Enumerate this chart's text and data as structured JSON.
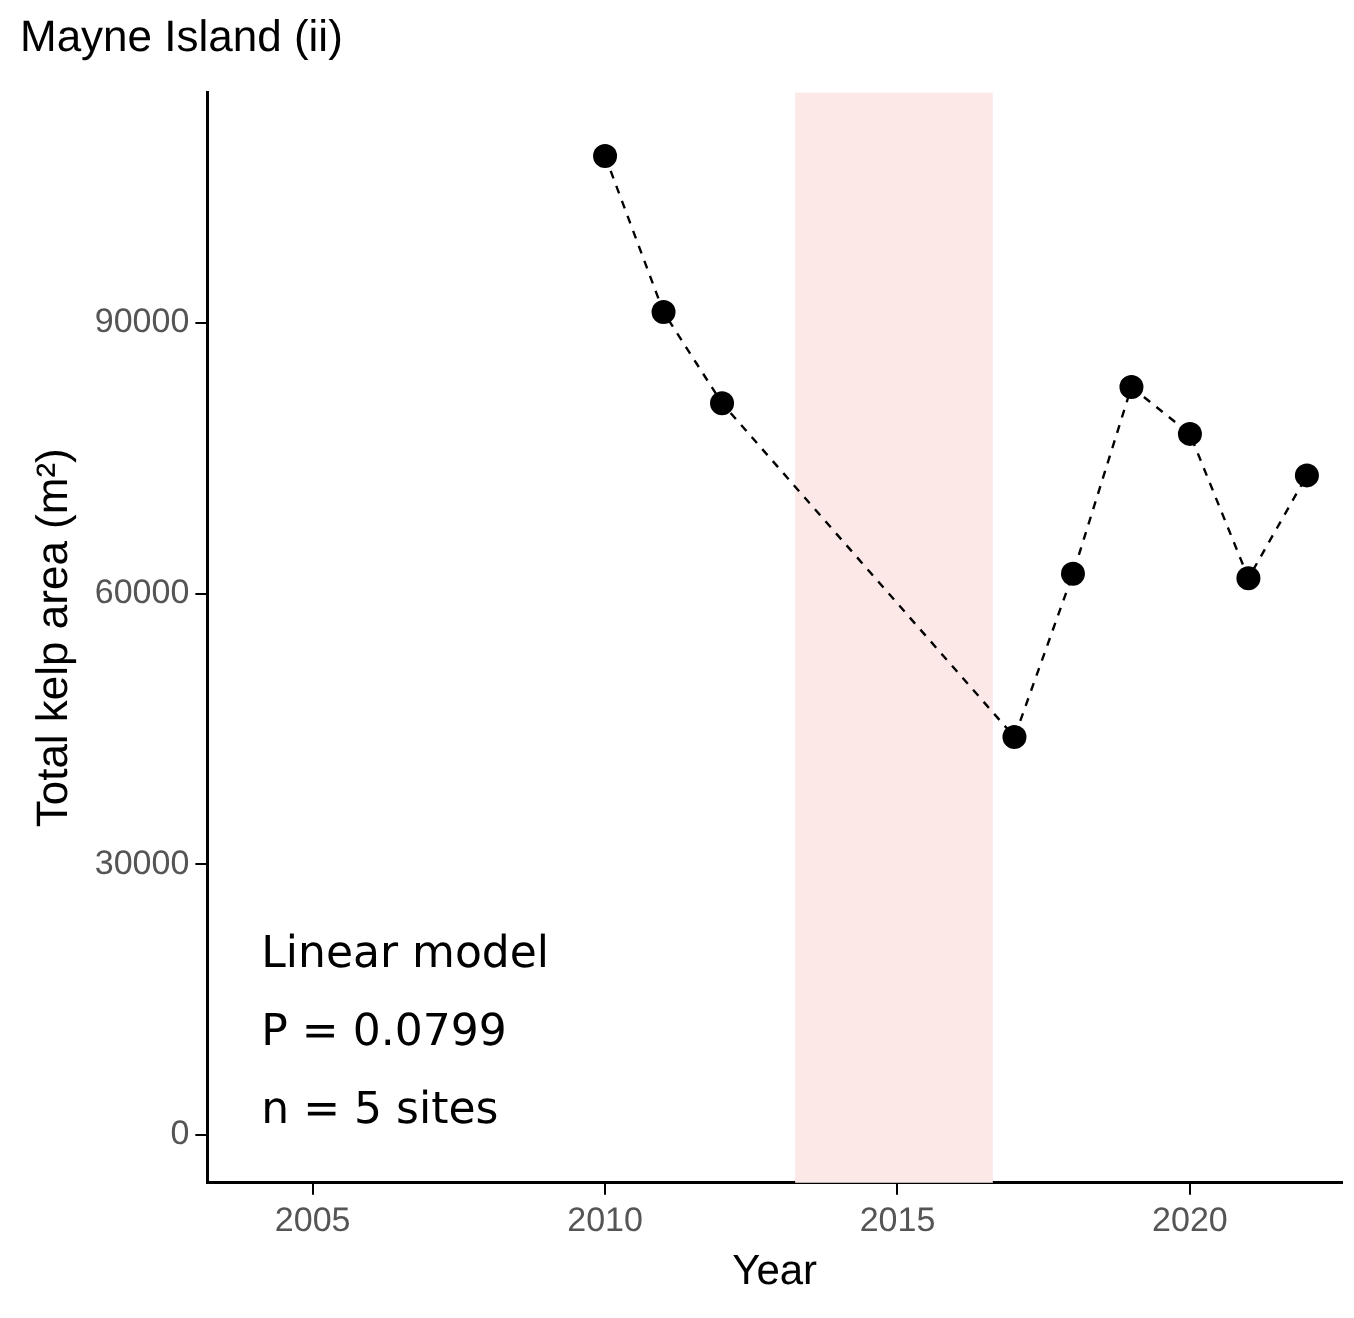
{
  "chart_data": {
    "type": "line",
    "title": "Mayne Island (ii)",
    "xlabel": "Year",
    "ylabel": "Total kelp area (m²)",
    "x": [
      2010,
      2011,
      2012,
      2017,
      2018,
      2019,
      2020,
      2021,
      2022
    ],
    "series": [
      {
        "color": "#000000",
        "values": [
          108500,
          91200,
          81100,
          44100,
          62200,
          82900,
          77700,
          61700,
          73100
        ]
      }
    ],
    "xlim": [
      2003.2,
      2022.6
    ],
    "xticks": [
      2005,
      2010,
      2015,
      2020
    ],
    "ylim": [
      -5300,
      115500
    ],
    "yticks": [
      0,
      30000,
      60000,
      90000
    ],
    "bands": [
      {
        "axis": "x",
        "from": 2013.25,
        "to": 2016.63,
        "color": "#fde8e8"
      }
    ],
    "annotations": [
      "Linear model",
      "P = 0.0799",
      "n = 5 sites"
    ],
    "grid": false,
    "legend": false,
    "marker": "circle",
    "line_style": "dashed"
  }
}
